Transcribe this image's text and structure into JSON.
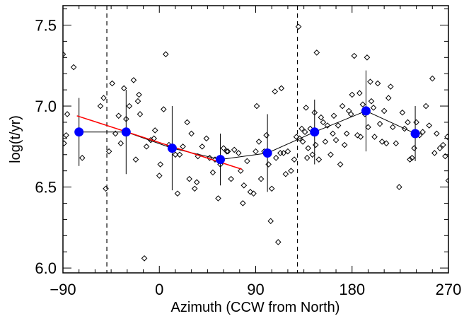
{
  "chart_data": {
    "type": "scatter",
    "title": "",
    "xlabel": "Azimuth (CCW from North)",
    "ylabel": "log(t/yr)",
    "xlim": [
      -90,
      270
    ],
    "ylim": [
      5.97,
      7.62
    ],
    "xticks": [
      -90,
      0,
      90,
      180,
      270
    ],
    "xtick_labels": [
      "−90",
      "0",
      "90",
      "180",
      "270"
    ],
    "yticks": [
      6.0,
      6.5,
      7.0,
      7.5
    ],
    "ytick_labels": [
      "6.0",
      "6.5",
      "7.0",
      "7.5"
    ],
    "grid": false,
    "legend": "none",
    "colors": {
      "scatter": "#000000",
      "binned": "#0000ff",
      "fit": "#ff0000",
      "errorbar": "#000000",
      "reference": "#000000"
    },
    "reference_lines_x": [
      -49,
      129
    ],
    "fit_line": {
      "x": [
        -77,
        77
      ],
      "y": [
        6.94,
        6.61
      ]
    },
    "binned": {
      "x": [
        -75,
        -31,
        12,
        57,
        101,
        145,
        193,
        239
      ],
      "y": [
        6.84,
        6.84,
        6.74,
        6.67,
        6.71,
        6.84,
        6.97,
        6.83
      ],
      "err": [
        0.21,
        0.26,
        0.26,
        0.16,
        0.24,
        0.2,
        0.25,
        0.17
      ]
    },
    "scatter_points": [
      [
        -90,
        7.32
      ],
      [
        -89,
        6.77
      ],
      [
        -87,
        6.82
      ],
      [
        -86,
        6.95
      ],
      [
        -80,
        7.24
      ],
      [
        -75,
        6.85
      ],
      [
        -72,
        6.68
      ],
      [
        -55,
        7.0
      ],
      [
        -52,
        7.05
      ],
      [
        -50,
        6.49
      ],
      [
        -47,
        6.72
      ],
      [
        -44,
        7.14
      ],
      [
        -41,
        6.83
      ],
      [
        -38,
        6.94
      ],
      [
        -36,
        6.77
      ],
      [
        -33,
        7.11
      ],
      [
        -31,
        6.92
      ],
      [
        -28,
        7.0
      ],
      [
        -24,
        7.16
      ],
      [
        -22,
        6.67
      ],
      [
        -20,
        7.03
      ],
      [
        -19,
        7.07
      ],
      [
        -18,
        6.95
      ],
      [
        -14,
        6.06
      ],
      [
        -12,
        6.75
      ],
      [
        -8,
        6.79
      ],
      [
        -5,
        6.8
      ],
      [
        -4,
        6.85
      ],
      [
        0,
        6.57
      ],
      [
        1,
        6.64
      ],
      [
        4,
        6.98
      ],
      [
        6,
        7.32
      ],
      [
        9,
        6.76
      ],
      [
        12,
        6.73
      ],
      [
        15,
        6.7
      ],
      [
        17,
        6.46
      ],
      [
        19,
        6.7
      ],
      [
        22,
        6.75
      ],
      [
        26,
        6.9
      ],
      [
        28,
        6.55
      ],
      [
        30,
        6.83
      ],
      [
        33,
        6.49
      ],
      [
        35,
        6.53
      ],
      [
        36,
        6.69
      ],
      [
        40,
        6.75
      ],
      [
        44,
        6.8
      ],
      [
        47,
        6.68
      ],
      [
        50,
        6.59
      ],
      [
        52,
        6.67
      ],
      [
        55,
        6.43
      ],
      [
        57,
        6.64
      ],
      [
        60,
        6.74
      ],
      [
        63,
        6.72
      ],
      [
        64,
        6.72
      ],
      [
        67,
        6.55
      ],
      [
        70,
        6.73
      ],
      [
        74,
        6.71
      ],
      [
        76,
        6.6
      ],
      [
        78,
        6.4
      ],
      [
        79,
        6.51
      ],
      [
        82,
        6.66
      ],
      [
        85,
        6.47
      ],
      [
        88,
        6.46
      ],
      [
        90,
        6.72
      ],
      [
        91,
        7.0
      ],
      [
        93,
        6.78
      ],
      [
        95,
        6.55
      ],
      [
        98,
        6.72
      ],
      [
        100,
        6.82
      ],
      [
        102,
        6.64
      ],
      [
        104,
        6.29
      ],
      [
        105,
        6.49
      ],
      [
        108,
        7.09
      ],
      [
        109,
        6.68
      ],
      [
        111,
        6.16
      ],
      [
        113,
        6.71
      ],
      [
        114,
        7.11
      ],
      [
        116,
        6.71
      ],
      [
        118,
        6.58
      ],
      [
        120,
        6.72
      ],
      [
        123,
        6.6
      ],
      [
        126,
        6.67
      ],
      [
        128,
        6.81
      ],
      [
        130,
        7.49
      ],
      [
        131,
        6.8
      ],
      [
        133,
        6.86
      ],
      [
        134,
        6.78
      ],
      [
        136,
        6.84
      ],
      [
        137,
        6.99
      ],
      [
        138,
        6.68
      ],
      [
        139,
        6.74
      ],
      [
        141,
        6.86
      ],
      [
        143,
        6.7
      ],
      [
        145,
        6.96
      ],
      [
        146,
        6.76
      ],
      [
        147,
        7.33
      ],
      [
        149,
        6.67
      ],
      [
        151,
        6.93
      ],
      [
        153,
        6.9
      ],
      [
        155,
        6.78
      ],
      [
        157,
        6.88
      ],
      [
        160,
        6.7
      ],
      [
        162,
        6.83
      ],
      [
        163,
        6.94
      ],
      [
        165,
        6.79
      ],
      [
        167,
        6.88
      ],
      [
        169,
        6.64
      ],
      [
        171,
        7.0
      ],
      [
        173,
        6.76
      ],
      [
        175,
        6.83
      ],
      [
        177,
        6.97
      ],
      [
        179,
        6.95
      ],
      [
        180,
        7.07
      ],
      [
        182,
        7.31
      ],
      [
        185,
        6.82
      ],
      [
        187,
        7.08
      ],
      [
        188,
        6.81
      ],
      [
        190,
        7.01
      ],
      [
        192,
        6.95
      ],
      [
        194,
        7.3
      ],
      [
        195,
        6.87
      ],
      [
        197,
        7.15
      ],
      [
        198,
        7.03
      ],
      [
        200,
        6.99
      ],
      [
        201,
        6.81
      ],
      [
        204,
        7.14
      ],
      [
        206,
        6.89
      ],
      [
        208,
        6.78
      ],
      [
        210,
        6.97
      ],
      [
        212,
        6.77
      ],
      [
        214,
        7.05
      ],
      [
        216,
        7.12
      ],
      [
        218,
        6.87
      ],
      [
        221,
        6.77
      ],
      [
        224,
        6.5
      ],
      [
        227,
        6.96
      ],
      [
        229,
        6.86
      ],
      [
        232,
        6.9
      ],
      [
        234,
        6.67
      ],
      [
        236,
        6.68
      ],
      [
        238,
        6.74
      ],
      [
        240,
        6.9
      ],
      [
        243,
        6.82
      ],
      [
        246,
        6.84
      ],
      [
        249,
        7.0
      ],
      [
        252,
        6.88
      ],
      [
        255,
        7.17
      ],
      [
        257,
        6.71
      ],
      [
        259,
        6.83
      ],
      [
        262,
        6.74
      ],
      [
        265,
        6.76
      ],
      [
        267,
        6.69
      ],
      [
        269,
        6.81
      ],
      [
        270,
        6.54
      ]
    ]
  }
}
